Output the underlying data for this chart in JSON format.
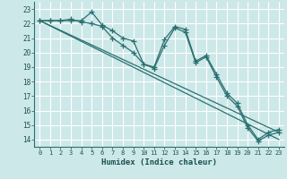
{
  "title": "",
  "xlabel": "Humidex (Indice chaleur)",
  "ylabel": "",
  "background_color": "#cde8e8",
  "grid_color": "#ffffff",
  "line_color": "#2a7070",
  "xlim": [
    -0.5,
    23.5
  ],
  "ylim": [
    13.5,
    23.5
  ],
  "yticks": [
    14,
    15,
    16,
    17,
    18,
    19,
    20,
    21,
    22,
    23
  ],
  "xticks": [
    0,
    1,
    2,
    3,
    4,
    5,
    6,
    7,
    8,
    9,
    10,
    11,
    12,
    13,
    14,
    15,
    16,
    17,
    18,
    19,
    20,
    21,
    22,
    23
  ],
  "series": [
    {
      "x": [
        0,
        1,
        2,
        3,
        4,
        5,
        6,
        7,
        8,
        9,
        10,
        11,
        12,
        13,
        14,
        15,
        16,
        17,
        18,
        19,
        20,
        21,
        22,
        23
      ],
      "y": [
        22.2,
        22.2,
        22.2,
        22.2,
        22.2,
        22.8,
        21.9,
        21.5,
        21.0,
        20.8,
        19.2,
        19.0,
        20.9,
        21.8,
        21.6,
        19.4,
        19.8,
        18.5,
        17.2,
        16.5,
        15.0,
        14.0,
        14.5,
        14.7
      ],
      "marker": true
    },
    {
      "x": [
        0,
        1,
        2,
        3,
        4,
        5,
        6,
        7,
        8,
        9,
        10,
        11,
        12,
        13,
        14,
        15,
        16,
        17,
        18,
        19,
        20,
        21,
        22,
        23
      ],
      "y": [
        22.2,
        22.2,
        22.2,
        22.3,
        22.1,
        22.0,
        21.8,
        21.0,
        20.5,
        20.0,
        19.2,
        18.9,
        20.5,
        21.7,
        21.4,
        19.3,
        19.7,
        18.3,
        17.0,
        16.3,
        14.8,
        13.9,
        14.3,
        14.5
      ],
      "marker": true
    },
    {
      "x": [
        0,
        23
      ],
      "y": [
        22.2,
        14.0
      ],
      "marker": false
    },
    {
      "x": [
        0,
        23
      ],
      "y": [
        22.2,
        14.5
      ],
      "marker": false
    }
  ]
}
